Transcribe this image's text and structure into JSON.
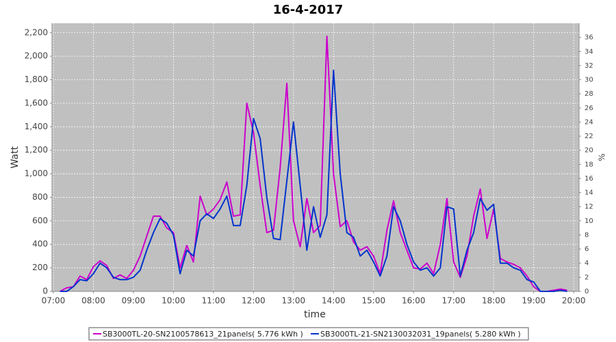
{
  "chart_data": {
    "type": "line",
    "title": "16-4-2017",
    "x_label": "time",
    "y_label": "Watt",
    "y2_label": "%",
    "x": [
      "07:10",
      "07:20",
      "07:30",
      "07:40",
      "07:50",
      "08:00",
      "08:10",
      "08:20",
      "08:30",
      "08:40",
      "08:50",
      "09:00",
      "09:10",
      "09:20",
      "09:30",
      "09:40",
      "09:50",
      "10:00",
      "10:10",
      "10:20",
      "10:30",
      "10:40",
      "10:50",
      "11:00",
      "11:10",
      "11:20",
      "11:30",
      "11:40",
      "11:50",
      "12:00",
      "12:10",
      "12:20",
      "12:30",
      "12:40",
      "12:50",
      "13:00",
      "13:10",
      "13:20",
      "13:30",
      "13:40",
      "13:50",
      "14:00",
      "14:10",
      "14:20",
      "14:30",
      "14:40",
      "14:50",
      "15:00",
      "15:10",
      "15:20",
      "15:30",
      "15:40",
      "15:50",
      "16:00",
      "16:10",
      "16:20",
      "16:30",
      "16:40",
      "16:50",
      "17:00",
      "17:10",
      "17:20",
      "17:30",
      "17:40",
      "17:50",
      "18:00",
      "18:10",
      "18:20",
      "18:30",
      "18:40",
      "18:50",
      "19:00",
      "19:10",
      "19:20",
      "19:30",
      "19:40",
      "19:50"
    ],
    "series": [
      {
        "name": "SB3000TL-20-SN2100578613_21panels( 5.776 kWh )",
        "color": "#cc00cc",
        "values": [
          0,
          30,
          40,
          130,
          100,
          210,
          260,
          220,
          110,
          140,
          110,
          180,
          300,
          470,
          640,
          640,
          540,
          500,
          200,
          390,
          250,
          810,
          650,
          700,
          780,
          930,
          640,
          650,
          1600,
          1350,
          900,
          500,
          520,
          1050,
          1770,
          600,
          380,
          790,
          500,
          560,
          2170,
          1000,
          550,
          600,
          420,
          350,
          380,
          300,
          150,
          520,
          770,
          500,
          350,
          200,
          190,
          240,
          150,
          400,
          790,
          250,
          120,
          300,
          640,
          870,
          450,
          700,
          280,
          250,
          230,
          200,
          130,
          40,
          0,
          0,
          10,
          20,
          10
        ]
      },
      {
        "name": "SB3000TL-21-SN2130032031_19panels( 5.280 kWh )",
        "color": "#0033cc",
        "values": [
          0,
          0,
          40,
          100,
          90,
          150,
          240,
          200,
          120,
          100,
          100,
          120,
          180,
          350,
          500,
          620,
          580,
          480,
          150,
          350,
          300,
          600,
          660,
          620,
          700,
          810,
          560,
          560,
          900,
          1470,
          1300,
          800,
          450,
          440,
          940,
          1440,
          900,
          350,
          720,
          460,
          650,
          1880,
          1000,
          500,
          460,
          300,
          350,
          250,
          130,
          300,
          720,
          600,
          400,
          250,
          180,
          200,
          130,
          200,
          720,
          700,
          130,
          350,
          500,
          790,
          690,
          740,
          240,
          240,
          200,
          180,
          100,
          80,
          0,
          0,
          0,
          10,
          0
        ]
      }
    ],
    "xlim": [
      "06:58",
      "20:08"
    ],
    "xticks": [
      "07:00",
      "08:00",
      "09:00",
      "10:00",
      "11:00",
      "12:00",
      "13:00",
      "14:00",
      "15:00",
      "16:00",
      "17:00",
      "18:00",
      "19:00",
      "20:00"
    ],
    "ylim": [
      0,
      2280
    ],
    "yticks": [
      0,
      200,
      400,
      600,
      800,
      {
        "value": 1000,
        "label": "1,000"
      },
      {
        "value": 1200,
        "label": "1,200"
      },
      {
        "value": 1400,
        "label": "1,400"
      },
      {
        "value": 1600,
        "label": "1,600"
      },
      {
        "value": 1800,
        "label": "1,800"
      },
      {
        "value": 2000,
        "label": "2,000"
      },
      {
        "value": 2200,
        "label": "2,200"
      }
    ],
    "y2lim": [
      0,
      38
    ],
    "y2ticks": [
      0,
      2,
      4,
      6,
      8,
      10,
      12,
      14,
      16,
      18,
      20,
      22,
      24,
      26,
      28,
      30,
      32,
      34,
      36
    ],
    "grid": true
  }
}
